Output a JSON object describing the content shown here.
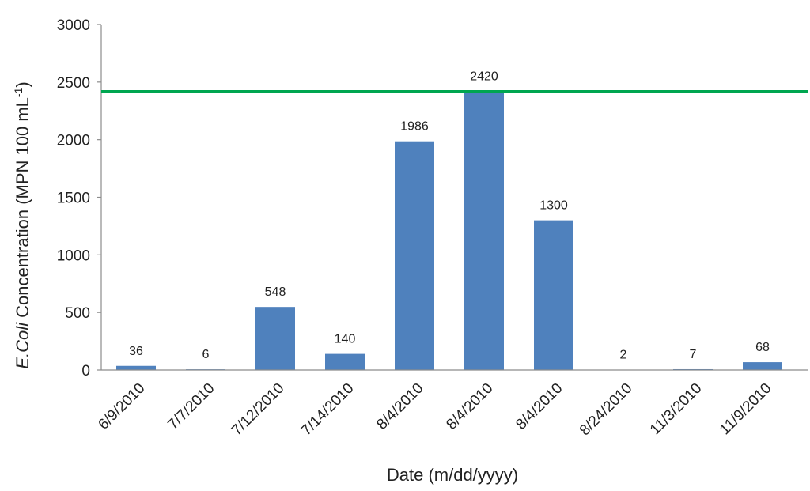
{
  "chart_data": {
    "type": "bar",
    "categories": [
      "6/9/2010",
      "7/7/2010",
      "7/12/2010",
      "7/14/2010",
      "8/4/2010",
      "8/4/2010",
      "8/4/2010",
      "8/24/2010",
      "11/3/2010",
      "11/9/2010"
    ],
    "values": [
      36,
      6,
      548,
      140,
      1986,
      2420,
      1300,
      2,
      7,
      68
    ],
    "data_labels": [
      "36",
      "6",
      "548",
      "140",
      "1986",
      "2420",
      "1300",
      "2",
      "7",
      "68"
    ],
    "title": "",
    "xlabel": "Date (m/dd/yyyy)",
    "ylabel_italic": "E.Coli",
    "ylabel_rest": " Concentration (MPN 100 mL",
    "ylabel_sup": "-1",
    "ylabel_close": ")",
    "ylim": [
      0,
      3000
    ],
    "yticks": [
      0,
      500,
      1000,
      1500,
      2000,
      2500,
      3000
    ],
    "reference_line": {
      "value": 2420
    },
    "grid": false,
    "legend": "none",
    "colors": {
      "bar": "#4f81bd",
      "reference_line": "#00a650",
      "axis": "#8c8c8c"
    }
  }
}
